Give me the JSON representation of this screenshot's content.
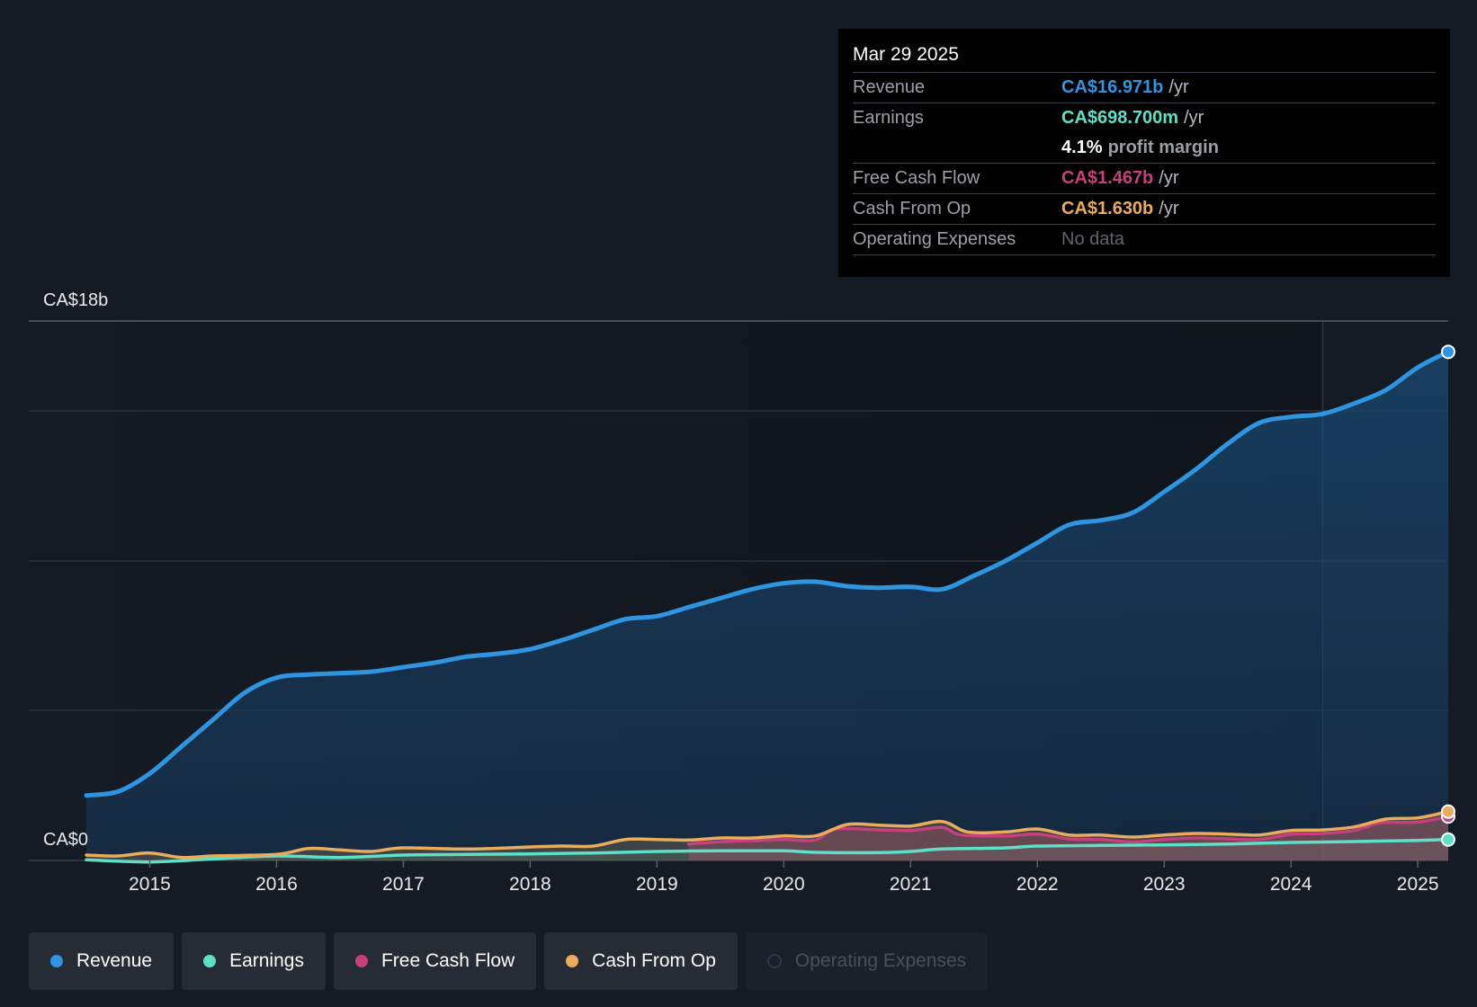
{
  "chart_data": {
    "type": "line",
    "y_max_label": "CA$18b",
    "y_min_label": "CA$0",
    "ylim": [
      0,
      18
    ],
    "x_range": [
      2014.5,
      2025.25
    ],
    "x_ticks": [
      "2015",
      "2016",
      "2017",
      "2018",
      "2019",
      "2020",
      "2021",
      "2022",
      "2023",
      "2024",
      "2025"
    ],
    "series": [
      {
        "name": "Revenue",
        "color": "#2f95e0",
        "points": [
          [
            2014.5,
            2.17
          ],
          [
            2014.75,
            2.3
          ],
          [
            2015.0,
            2.9
          ],
          [
            2015.25,
            3.8
          ],
          [
            2015.5,
            4.7
          ],
          [
            2015.75,
            5.6
          ],
          [
            2016.0,
            6.1
          ],
          [
            2016.25,
            6.2
          ],
          [
            2016.5,
            6.25
          ],
          [
            2016.75,
            6.3
          ],
          [
            2017.0,
            6.45
          ],
          [
            2017.25,
            6.6
          ],
          [
            2017.5,
            6.8
          ],
          [
            2017.75,
            6.9
          ],
          [
            2018.0,
            7.05
          ],
          [
            2018.25,
            7.35
          ],
          [
            2018.5,
            7.7
          ],
          [
            2018.75,
            8.05
          ],
          [
            2019.0,
            8.15
          ],
          [
            2019.25,
            8.45
          ],
          [
            2019.5,
            8.75
          ],
          [
            2019.75,
            9.05
          ],
          [
            2020.0,
            9.25
          ],
          [
            2020.25,
            9.3
          ],
          [
            2020.5,
            9.15
          ],
          [
            2020.75,
            9.1
          ],
          [
            2021.0,
            9.13
          ],
          [
            2021.25,
            9.05
          ],
          [
            2021.5,
            9.5
          ],
          [
            2021.75,
            10.0
          ],
          [
            2022.0,
            10.6
          ],
          [
            2022.25,
            11.2
          ],
          [
            2022.5,
            11.35
          ],
          [
            2022.75,
            11.6
          ],
          [
            2023.0,
            12.3
          ],
          [
            2023.25,
            13.05
          ],
          [
            2023.5,
            13.9
          ],
          [
            2023.75,
            14.6
          ],
          [
            2024.0,
            14.8
          ],
          [
            2024.25,
            14.9
          ],
          [
            2024.5,
            15.25
          ],
          [
            2024.75,
            15.7
          ],
          [
            2025.0,
            16.45
          ],
          [
            2025.24,
            16.97
          ]
        ]
      },
      {
        "name": "Earnings",
        "color": "#5ee0c8",
        "points": [
          [
            2014.5,
            0.02
          ],
          [
            2015.0,
            -0.05
          ],
          [
            2015.5,
            0.05
          ],
          [
            2016.0,
            0.15
          ],
          [
            2016.5,
            0.1
          ],
          [
            2017.0,
            0.18
          ],
          [
            2017.5,
            0.2
          ],
          [
            2018.0,
            0.22
          ],
          [
            2018.5,
            0.25
          ],
          [
            2019.0,
            0.3
          ],
          [
            2019.5,
            0.32
          ],
          [
            2020.0,
            0.32
          ],
          [
            2020.25,
            0.27
          ],
          [
            2020.75,
            0.26
          ],
          [
            2021.0,
            0.3
          ],
          [
            2021.25,
            0.38
          ],
          [
            2021.75,
            0.42
          ],
          [
            2022.0,
            0.48
          ],
          [
            2022.5,
            0.5
          ],
          [
            2023.0,
            0.52
          ],
          [
            2023.5,
            0.55
          ],
          [
            2024.0,
            0.6
          ],
          [
            2024.5,
            0.63
          ],
          [
            2025.0,
            0.67
          ],
          [
            2025.24,
            0.6987
          ]
        ]
      },
      {
        "name": "Free Cash Flow",
        "color": "#c6407d",
        "points": [
          [
            2019.25,
            0.55
          ],
          [
            2019.5,
            0.62
          ],
          [
            2019.75,
            0.66
          ],
          [
            2020.0,
            0.7
          ],
          [
            2020.25,
            0.68
          ],
          [
            2020.4,
            1.05
          ],
          [
            2020.75,
            1.02
          ],
          [
            2021.0,
            1.0
          ],
          [
            2021.25,
            1.1
          ],
          [
            2021.4,
            0.85
          ],
          [
            2021.75,
            0.82
          ],
          [
            2022.0,
            0.88
          ],
          [
            2022.25,
            0.72
          ],
          [
            2022.5,
            0.7
          ],
          [
            2022.75,
            0.62
          ],
          [
            2023.0,
            0.7
          ],
          [
            2023.25,
            0.75
          ],
          [
            2023.5,
            0.72
          ],
          [
            2023.75,
            0.7
          ],
          [
            2024.0,
            0.88
          ],
          [
            2024.25,
            0.9
          ],
          [
            2024.5,
            1.0
          ],
          [
            2024.7,
            1.25
          ],
          [
            2025.0,
            1.28
          ],
          [
            2025.24,
            1.467
          ]
        ]
      },
      {
        "name": "Cash From Op",
        "color": "#e8ac5c",
        "points": [
          [
            2014.5,
            0.18
          ],
          [
            2014.75,
            0.15
          ],
          [
            2015.0,
            0.25
          ],
          [
            2015.25,
            0.1
          ],
          [
            2015.5,
            0.15
          ],
          [
            2016.0,
            0.2
          ],
          [
            2016.25,
            0.4
          ],
          [
            2016.5,
            0.35
          ],
          [
            2016.75,
            0.3
          ],
          [
            2017.0,
            0.42
          ],
          [
            2017.5,
            0.38
          ],
          [
            2018.0,
            0.45
          ],
          [
            2018.25,
            0.48
          ],
          [
            2018.5,
            0.48
          ],
          [
            2018.75,
            0.7
          ],
          [
            2019.0,
            0.7
          ],
          [
            2019.25,
            0.68
          ],
          [
            2019.5,
            0.75
          ],
          [
            2019.75,
            0.75
          ],
          [
            2020.0,
            0.82
          ],
          [
            2020.25,
            0.82
          ],
          [
            2020.5,
            1.2
          ],
          [
            2020.75,
            1.18
          ],
          [
            2021.0,
            1.15
          ],
          [
            2021.25,
            1.3
          ],
          [
            2021.45,
            0.95
          ],
          [
            2021.75,
            0.95
          ],
          [
            2022.0,
            1.05
          ],
          [
            2022.25,
            0.85
          ],
          [
            2022.5,
            0.85
          ],
          [
            2022.75,
            0.78
          ],
          [
            2023.0,
            0.85
          ],
          [
            2023.25,
            0.9
          ],
          [
            2023.5,
            0.88
          ],
          [
            2023.75,
            0.85
          ],
          [
            2024.0,
            1.0
          ],
          [
            2024.25,
            1.02
          ],
          [
            2024.5,
            1.12
          ],
          [
            2024.75,
            1.38
          ],
          [
            2025.0,
            1.42
          ],
          [
            2025.24,
            1.63
          ]
        ]
      }
    ],
    "forecast_start": 2024.25,
    "legend": [
      "Revenue",
      "Earnings",
      "Free Cash Flow",
      "Cash From Op",
      "Operating Expenses"
    ]
  },
  "tooltip": {
    "date": "Mar 29 2025",
    "revenue_label": "Revenue",
    "revenue_value": "CA$16.971b",
    "revenue_unit": "/yr",
    "earnings_label": "Earnings",
    "earnings_value": "CA$698.700m",
    "earnings_unit": "/yr",
    "margin_value": "4.1%",
    "margin_text": "profit margin",
    "fcf_label": "Free Cash Flow",
    "fcf_value": "CA$1.467b",
    "fcf_unit": "/yr",
    "cfo_label": "Cash From Op",
    "cfo_value": "CA$1.630b",
    "cfo_unit": "/yr",
    "opex_label": "Operating Expenses",
    "opex_value": "No data"
  },
  "legend": {
    "revenue": "Revenue",
    "earnings": "Earnings",
    "fcf": "Free Cash Flow",
    "cfo": "Cash From Op",
    "opex": "Operating Expenses"
  },
  "colors": {
    "revenue": "#2f95e0",
    "earnings": "#5ee0c8",
    "fcf": "#c6407d",
    "cfo": "#e8ac5c",
    "opex": "#3b2f50",
    "background": "#151b24"
  }
}
